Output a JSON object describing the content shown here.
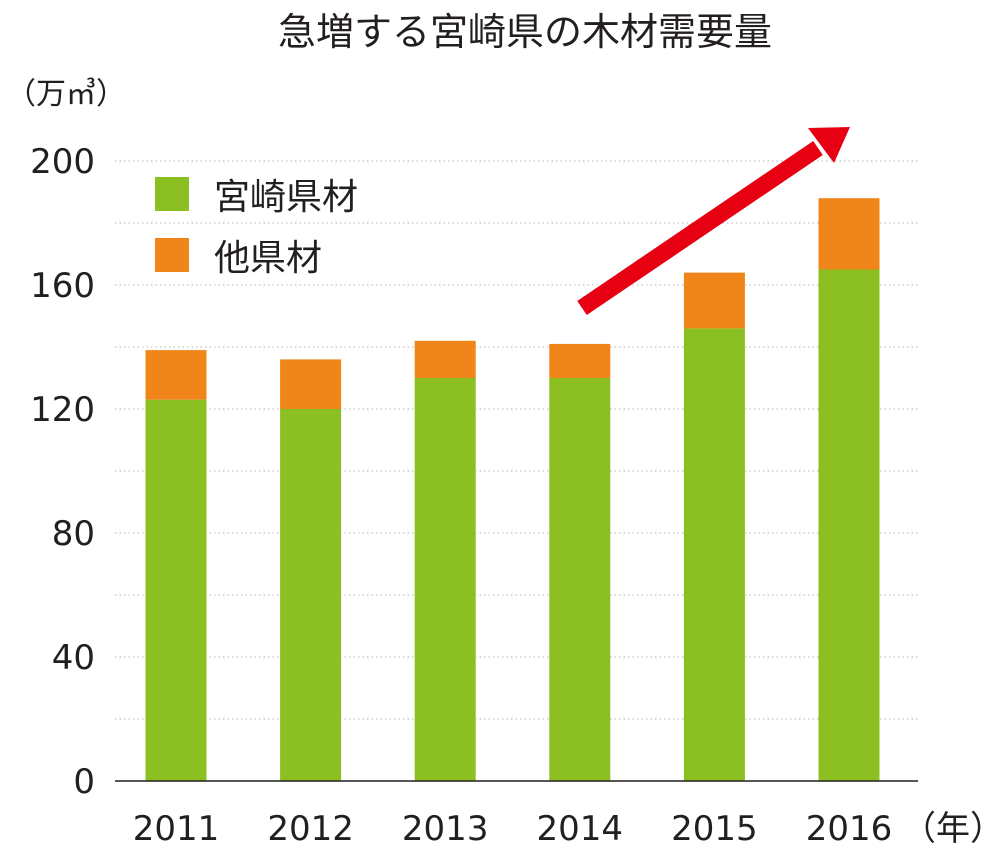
{
  "chart_data": {
    "type": "bar",
    "stacked": true,
    "title": "急増する宮崎県の木材需要量",
    "ylabel": "（万㎥）",
    "xlabel": "（年）",
    "categories": [
      "2011",
      "2012",
      "2013",
      "2014",
      "2015",
      "2016"
    ],
    "series": [
      {
        "name": "宮崎県材",
        "color": "#8cc022",
        "values": [
          123,
          120,
          130,
          130,
          146,
          165
        ]
      },
      {
        "name": "他県材",
        "color": "#f08519",
        "values": [
          16,
          16,
          12,
          11,
          18,
          23
        ]
      }
    ],
    "ylim": [
      0,
      200
    ],
    "yticks": [
      0,
      40,
      80,
      120,
      160,
      200
    ],
    "grid": true,
    "legend_position": "top-left",
    "annotation": {
      "type": "arrow",
      "color": "#e60012",
      "meaning": "increasing trend"
    }
  }
}
